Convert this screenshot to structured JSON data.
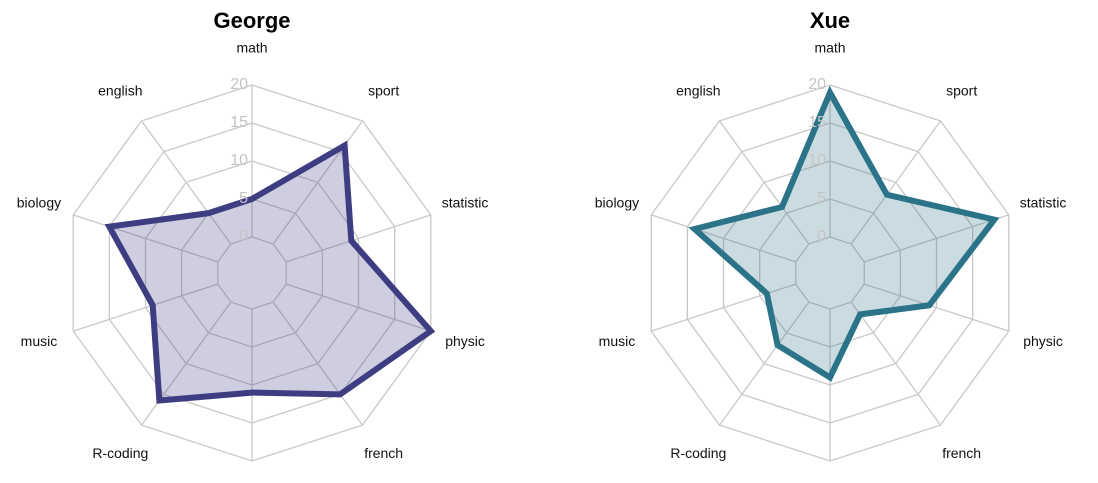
{
  "chart_data": [
    {
      "type": "radar",
      "title": "George",
      "categories": [
        "math",
        "sport",
        "statistic",
        "physic",
        "french",
        null,
        "R-coding",
        "music",
        "biology",
        "english"
      ],
      "values": [
        5,
        16,
        9,
        20,
        15,
        11,
        16,
        9,
        15,
        5
      ],
      "color": "#3f3d82",
      "rlim": [
        0,
        20
      ],
      "rticks": [
        0,
        5,
        10,
        15,
        20
      ]
    },
    {
      "type": "radar",
      "title": "Xue",
      "categories": [
        "math",
        "sport",
        "statistic",
        "physic",
        "french",
        null,
        "R-coding",
        "music",
        "biology",
        "english"
      ],
      "values": [
        19,
        8,
        18,
        9,
        2,
        9,
        7,
        4,
        14,
        6
      ],
      "color": "#2a7388",
      "rlim": [
        0,
        20
      ],
      "rticks": [
        0,
        5,
        10,
        15,
        20
      ]
    }
  ]
}
